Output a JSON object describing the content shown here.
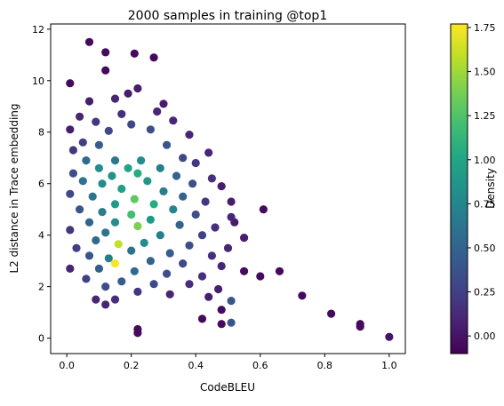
{
  "chart_data": {
    "type": "scatter",
    "title": "2000 samples in training @top1",
    "xlabel": "CodeBLEU",
    "ylabel": "L2 distance in Trace embedding",
    "xlim": [
      -0.05,
      1.05
    ],
    "ylim": [
      -0.6,
      12.2
    ],
    "xticks": [
      0.0,
      0.2,
      0.4,
      0.6,
      0.8,
      1.0
    ],
    "xtick_labels": [
      "0.0",
      "0.2",
      "0.4",
      "0.6",
      "0.8",
      "1.0"
    ],
    "yticks": [
      0,
      2,
      4,
      6,
      8,
      10,
      12
    ],
    "ytick_labels": [
      "0",
      "2",
      "4",
      "6",
      "8",
      "10",
      "12"
    ],
    "grid": false,
    "colormap": "viridis",
    "colorbar": {
      "label": "Density",
      "range": [
        -0.1,
        1.77
      ],
      "ticks": [
        0.0,
        0.25,
        0.5,
        0.75,
        1.0,
        1.25,
        1.5,
        1.75
      ],
      "tick_labels": [
        "0.00",
        "0.25",
        "0.50",
        "0.75",
        "1.00",
        "1.25",
        "1.50",
        "1.75"
      ]
    },
    "points": [
      [
        0.07,
        11.5,
        -0.05
      ],
      [
        0.12,
        11.1,
        -0.05
      ],
      [
        0.21,
        11.05,
        -0.05
      ],
      [
        0.27,
        10.9,
        -0.05
      ],
      [
        0.12,
        10.4,
        -0.05
      ],
      [
        0.01,
        9.9,
        -0.05
      ],
      [
        0.22,
        9.7,
        0.05
      ],
      [
        0.19,
        9.5,
        0.05
      ],
      [
        0.15,
        9.3,
        0.1
      ],
      [
        0.07,
        9.2,
        0.05
      ],
      [
        0.3,
        9.1,
        0.05
      ],
      [
        0.28,
        8.8,
        0.1
      ],
      [
        0.04,
        8.6,
        0.1
      ],
      [
        0.17,
        8.7,
        0.15
      ],
      [
        0.33,
        8.45,
        0.1
      ],
      [
        0.09,
        8.4,
        0.2
      ],
      [
        0.2,
        8.3,
        0.3
      ],
      [
        0.01,
        8.1,
        0.05
      ],
      [
        0.13,
        8.05,
        0.3
      ],
      [
        0.26,
        8.1,
        0.35
      ],
      [
        0.38,
        7.9,
        0.1
      ],
      [
        0.05,
        7.6,
        0.25
      ],
      [
        0.1,
        7.5,
        0.45
      ],
      [
        0.31,
        7.5,
        0.4
      ],
      [
        0.02,
        7.3,
        0.2
      ],
      [
        0.44,
        7.2,
        0.1
      ],
      [
        0.36,
        7.0,
        0.3
      ],
      [
        0.06,
        6.9,
        0.55
      ],
      [
        0.15,
        6.9,
        0.65
      ],
      [
        0.23,
        6.9,
        0.8
      ],
      [
        0.4,
        6.8,
        0.2
      ],
      [
        0.1,
        6.6,
        0.8
      ],
      [
        0.19,
        6.6,
        1.0
      ],
      [
        0.29,
        6.6,
        0.7
      ],
      [
        0.02,
        6.4,
        0.35
      ],
      [
        0.14,
        6.3,
        0.85
      ],
      [
        0.22,
        6.4,
        1.05
      ],
      [
        0.34,
        6.3,
        0.5
      ],
      [
        0.45,
        6.2,
        0.15
      ],
      [
        0.05,
        6.1,
        0.6
      ],
      [
        0.11,
        6.0,
        0.8
      ],
      [
        0.25,
        6.1,
        0.9
      ],
      [
        0.39,
        6.0,
        0.35
      ],
      [
        0.48,
        5.9,
        0.05
      ],
      [
        0.17,
        5.8,
        0.95
      ],
      [
        0.3,
        5.7,
        0.7
      ],
      [
        0.01,
        5.6,
        0.3
      ],
      [
        0.08,
        5.5,
        0.6
      ],
      [
        0.21,
        5.4,
        1.3
      ],
      [
        0.36,
        5.5,
        0.5
      ],
      [
        0.43,
        5.3,
        0.2
      ],
      [
        0.51,
        5.3,
        0.05
      ],
      [
        0.15,
        5.2,
        0.9
      ],
      [
        0.27,
        5.2,
        1.05
      ],
      [
        0.33,
        5.0,
        0.75
      ],
      [
        0.61,
        5.0,
        -0.05
      ],
      [
        0.04,
        5.0,
        0.4
      ],
      [
        0.11,
        4.9,
        0.7
      ],
      [
        0.2,
        4.8,
        1.2
      ],
      [
        0.4,
        4.8,
        0.35
      ],
      [
        0.51,
        4.7,
        0.1
      ],
      [
        0.26,
        4.6,
        0.9
      ],
      [
        0.07,
        4.5,
        0.5
      ],
      [
        0.15,
        4.5,
        0.8
      ],
      [
        0.22,
        4.35,
        1.4
      ],
      [
        0.35,
        4.4,
        0.5
      ],
      [
        0.46,
        4.3,
        0.15
      ],
      [
        0.52,
        4.5,
        0.05
      ],
      [
        0.01,
        4.2,
        0.2
      ],
      [
        0.12,
        4.1,
        0.6
      ],
      [
        0.29,
        4.0,
        0.7
      ],
      [
        0.42,
        4.0,
        0.25
      ],
      [
        0.55,
        3.9,
        0.05
      ],
      [
        0.09,
        3.8,
        0.55
      ],
      [
        0.16,
        3.65,
        1.6
      ],
      [
        0.24,
        3.7,
        0.8
      ],
      [
        0.38,
        3.6,
        0.35
      ],
      [
        0.5,
        3.5,
        0.1
      ],
      [
        0.03,
        3.5,
        0.25
      ],
      [
        0.2,
        3.4,
        0.6
      ],
      [
        0.32,
        3.3,
        0.45
      ],
      [
        0.45,
        3.2,
        0.15
      ],
      [
        0.07,
        3.2,
        0.4
      ],
      [
        0.13,
        3.1,
        0.7
      ],
      [
        0.26,
        3.0,
        0.5
      ],
      [
        0.15,
        2.9,
        1.75
      ],
      [
        0.36,
        2.9,
        0.3
      ],
      [
        0.48,
        2.8,
        0.1
      ],
      [
        0.01,
        2.7,
        0.1
      ],
      [
        0.1,
        2.7,
        0.45
      ],
      [
        0.21,
        2.6,
        0.55
      ],
      [
        0.31,
        2.5,
        0.35
      ],
      [
        0.55,
        2.6,
        -0.05
      ],
      [
        0.66,
        2.6,
        -0.05
      ],
      [
        0.42,
        2.4,
        0.15
      ],
      [
        0.6,
        2.4,
        -0.05
      ],
      [
        0.06,
        2.3,
        0.25
      ],
      [
        0.17,
        2.2,
        0.45
      ],
      [
        0.27,
        2.1,
        0.3
      ],
      [
        0.38,
        2.1,
        0.15
      ],
      [
        0.12,
        2.0,
        0.35
      ],
      [
        0.47,
        1.9,
        0.05
      ],
      [
        0.22,
        1.8,
        0.2
      ],
      [
        0.32,
        1.7,
        0.1
      ],
      [
        0.73,
        1.65,
        -0.05
      ],
      [
        0.44,
        1.6,
        0.05
      ],
      [
        0.09,
        1.5,
        0.1
      ],
      [
        0.15,
        1.5,
        0.15
      ],
      [
        0.51,
        1.45,
        0.4
      ],
      [
        0.12,
        1.3,
        0.1
      ],
      [
        0.42,
        0.75,
        -0.05
      ],
      [
        0.51,
        0.6,
        0.4
      ],
      [
        0.48,
        1.1,
        -0.05
      ],
      [
        0.48,
        0.55,
        -0.05
      ],
      [
        0.82,
        0.95,
        -0.05
      ],
      [
        0.91,
        0.55,
        -0.05
      ],
      [
        0.91,
        0.45,
        -0.05
      ],
      [
        0.22,
        0.35,
        -0.05
      ],
      [
        0.22,
        0.2,
        -0.05
      ],
      [
        1.0,
        0.05,
        0.0
      ]
    ]
  }
}
